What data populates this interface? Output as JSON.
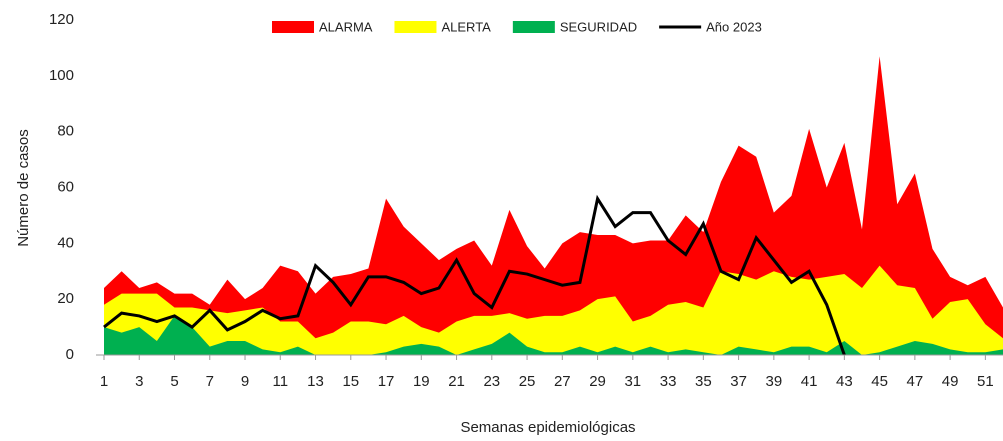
{
  "chart_data": {
    "type": "area",
    "y_label": "Número de casos",
    "x_label": "Semanas epidemiológicas",
    "x": [
      1,
      2,
      3,
      4,
      5,
      6,
      7,
      8,
      9,
      10,
      11,
      12,
      13,
      14,
      15,
      16,
      17,
      18,
      19,
      20,
      21,
      22,
      23,
      24,
      25,
      26,
      27,
      28,
      29,
      30,
      31,
      32,
      33,
      34,
      35,
      36,
      37,
      38,
      39,
      40,
      41,
      42,
      43,
      44,
      45,
      46,
      47,
      48,
      49,
      50,
      51,
      52
    ],
    "xlim": [
      1,
      52
    ],
    "xticks": [
      1,
      3,
      5,
      7,
      9,
      11,
      13,
      15,
      17,
      19,
      21,
      23,
      25,
      27,
      29,
      31,
      33,
      35,
      37,
      39,
      41,
      43,
      45,
      47,
      49,
      51
    ],
    "ylim": [
      0,
      120
    ],
    "yticks": [
      0,
      20,
      40,
      60,
      80,
      100,
      120
    ],
    "series": [
      {
        "name": "ALARMA",
        "color": "#ff0000",
        "values": [
          24,
          30,
          24,
          26,
          22,
          22,
          18,
          27,
          20,
          24,
          32,
          30,
          22,
          28,
          29,
          31,
          56,
          46,
          40,
          34,
          38,
          41,
          32,
          52,
          39,
          31,
          40,
          44,
          43,
          43,
          40,
          41,
          41,
          50,
          44,
          62,
          75,
          71,
          51,
          57,
          81,
          60,
          76,
          45,
          107,
          54,
          65,
          38,
          28,
          25,
          28,
          17
        ]
      },
      {
        "name": "ALERTA",
        "color": "#ffff00",
        "values": [
          18,
          22,
          22,
          22,
          17,
          17,
          16,
          15,
          16,
          17,
          12,
          12,
          6,
          8,
          12,
          12,
          11,
          14,
          10,
          8,
          12,
          14,
          14,
          15,
          13,
          14,
          14,
          16,
          20,
          21,
          12,
          14,
          18,
          19,
          17,
          30,
          29,
          27,
          30,
          28,
          27,
          28,
          29,
          24,
          32,
          25,
          24,
          13,
          19,
          20,
          11,
          6
        ]
      },
      {
        "name": "SEGURIDAD",
        "color": "#00b050",
        "values": [
          10,
          8,
          10,
          5,
          14,
          10,
          3,
          5,
          5,
          2,
          1,
          3,
          0,
          0,
          0,
          0,
          1,
          3,
          4,
          3,
          0,
          2,
          4,
          8,
          3,
          1,
          1,
          3,
          1,
          3,
          1,
          3,
          1,
          2,
          1,
          0,
          3,
          2,
          1,
          3,
          3,
          1,
          5,
          0,
          1,
          3,
          5,
          4,
          2,
          1,
          1,
          2
        ]
      },
      {
        "name": "Año 2023",
        "color": "#000000",
        "type": "line",
        "values": [
          10,
          15,
          14,
          12,
          14,
          10,
          16,
          9,
          12,
          16,
          13,
          14,
          32,
          26,
          18,
          28,
          28,
          26,
          22,
          24,
          34,
          22,
          17,
          30,
          29,
          27,
          25,
          26,
          56,
          46,
          51,
          51,
          41,
          36,
          47,
          30,
          27,
          42,
          34,
          26,
          30,
          18,
          0,
          null,
          null,
          null,
          null,
          null,
          null,
          null,
          null,
          null
        ]
      }
    ]
  }
}
